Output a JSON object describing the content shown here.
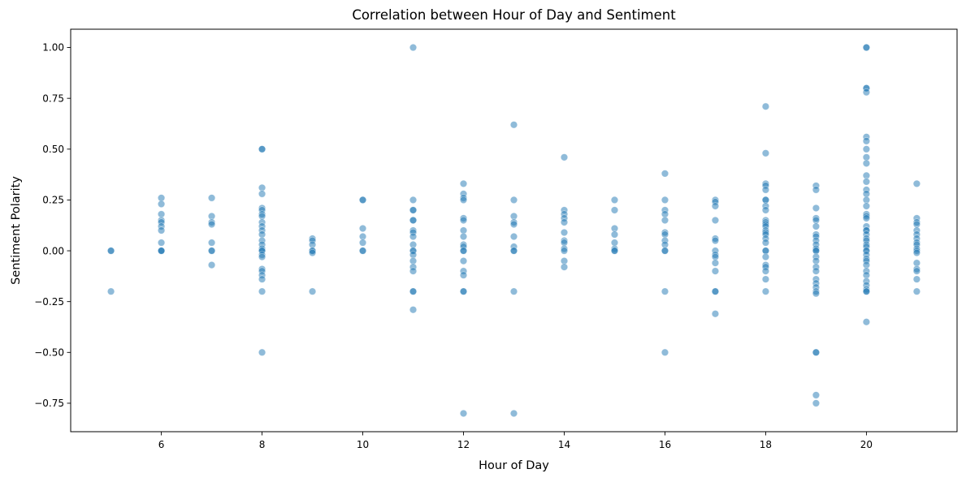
{
  "chart_data": {
    "type": "scatter",
    "title": "Correlation between Hour of Day and Sentiment",
    "xlabel": "Hour of Day",
    "ylabel": "Sentiment Polarity",
    "xlim": [
      4.2,
      21.8
    ],
    "ylim": [
      -0.89,
      1.09
    ],
    "xticks": [
      6,
      8,
      10,
      12,
      14,
      16,
      18,
      20
    ],
    "yticks": [
      -0.75,
      -0.5,
      -0.25,
      0.0,
      0.25,
      0.5,
      0.75,
      1.0
    ],
    "grid": false,
    "legend": "none",
    "marker_color": "#1f77b4",
    "marker_alpha": 0.5,
    "points": [
      [
        5,
        0
      ],
      [
        5,
        0
      ],
      [
        5,
        -0.2
      ],
      [
        6,
        0.26
      ],
      [
        6,
        0.23
      ],
      [
        6,
        0.18
      ],
      [
        6,
        0.15
      ],
      [
        6,
        0.14
      ],
      [
        6,
        0.12
      ],
      [
        6,
        0.1
      ],
      [
        6,
        0.04
      ],
      [
        6,
        0
      ],
      [
        6,
        0
      ],
      [
        6,
        0
      ],
      [
        7,
        0.26
      ],
      [
        7,
        0.17
      ],
      [
        7,
        0.14
      ],
      [
        7,
        0.13
      ],
      [
        7,
        0.04
      ],
      [
        7,
        0
      ],
      [
        7,
        0
      ],
      [
        7,
        -0.07
      ],
      [
        8,
        0.5
      ],
      [
        8,
        0.5
      ],
      [
        8,
        0.31
      ],
      [
        8,
        0.28
      ],
      [
        8,
        0.21
      ],
      [
        8,
        0.2
      ],
      [
        8,
        0.18
      ],
      [
        8,
        0.17
      ],
      [
        8,
        0.14
      ],
      [
        8,
        0.12
      ],
      [
        8,
        0.1
      ],
      [
        8,
        0.08
      ],
      [
        8,
        0.05
      ],
      [
        8,
        0.03
      ],
      [
        8,
        0.01
      ],
      [
        8,
        0
      ],
      [
        8,
        0
      ],
      [
        8,
        -0.02
      ],
      [
        8,
        -0.03
      ],
      [
        8,
        -0.09
      ],
      [
        8,
        -0.1
      ],
      [
        8,
        -0.12
      ],
      [
        8,
        -0.14
      ],
      [
        8,
        -0.2
      ],
      [
        8,
        -0.5
      ],
      [
        9,
        0.06
      ],
      [
        9,
        0.05
      ],
      [
        9,
        0.03
      ],
      [
        9,
        0
      ],
      [
        9,
        0
      ],
      [
        9,
        -0.01
      ],
      [
        9,
        -0.2
      ],
      [
        10,
        0.25
      ],
      [
        10,
        0.25
      ],
      [
        10,
        0.11
      ],
      [
        10,
        0.07
      ],
      [
        10,
        0.04
      ],
      [
        10,
        0
      ],
      [
        10,
        0
      ],
      [
        11,
        1.0
      ],
      [
        11,
        0.25
      ],
      [
        11,
        0.2
      ],
      [
        11,
        0.2
      ],
      [
        11,
        0.15
      ],
      [
        11,
        0.15
      ],
      [
        11,
        0.1
      ],
      [
        11,
        0.09
      ],
      [
        11,
        0.07
      ],
      [
        11,
        0.03
      ],
      [
        11,
        0
      ],
      [
        11,
        0
      ],
      [
        11,
        -0.02
      ],
      [
        11,
        -0.05
      ],
      [
        11,
        -0.08
      ],
      [
        11,
        -0.1
      ],
      [
        11,
        -0.2
      ],
      [
        11,
        -0.2
      ],
      [
        11,
        -0.29
      ],
      [
        12,
        0.33
      ],
      [
        12,
        0.28
      ],
      [
        12,
        0.26
      ],
      [
        12,
        0.25
      ],
      [
        12,
        0.16
      ],
      [
        12,
        0.15
      ],
      [
        12,
        0.1
      ],
      [
        12,
        0.07
      ],
      [
        12,
        0.03
      ],
      [
        12,
        0.02
      ],
      [
        12,
        0
      ],
      [
        12,
        0
      ],
      [
        12,
        -0.05
      ],
      [
        12,
        -0.1
      ],
      [
        12,
        -0.12
      ],
      [
        12,
        -0.2
      ],
      [
        12,
        -0.2
      ],
      [
        12,
        -0.8
      ],
      [
        13,
        0.62
      ],
      [
        13,
        0.25
      ],
      [
        13,
        0.17
      ],
      [
        13,
        0.14
      ],
      [
        13,
        0.13
      ],
      [
        13,
        0.07
      ],
      [
        13,
        0.02
      ],
      [
        13,
        0
      ],
      [
        13,
        0
      ],
      [
        13,
        -0.2
      ],
      [
        13,
        -0.8
      ],
      [
        14,
        0.46
      ],
      [
        14,
        0.2
      ],
      [
        14,
        0.18
      ],
      [
        14,
        0.16
      ],
      [
        14,
        0.14
      ],
      [
        14,
        0.09
      ],
      [
        14,
        0.05
      ],
      [
        14,
        0.04
      ],
      [
        14,
        0.01
      ],
      [
        14,
        0
      ],
      [
        14,
        -0.05
      ],
      [
        14,
        -0.08
      ],
      [
        15,
        0.25
      ],
      [
        15,
        0.2
      ],
      [
        15,
        0.11
      ],
      [
        15,
        0.08
      ],
      [
        15,
        0.04
      ],
      [
        15,
        0.01
      ],
      [
        15,
        0
      ],
      [
        15,
        0
      ],
      [
        16,
        0.38
      ],
      [
        16,
        0.25
      ],
      [
        16,
        0.2
      ],
      [
        16,
        0.18
      ],
      [
        16,
        0.15
      ],
      [
        16,
        0.09
      ],
      [
        16,
        0.08
      ],
      [
        16,
        0.05
      ],
      [
        16,
        0.03
      ],
      [
        16,
        0
      ],
      [
        16,
        0
      ],
      [
        16,
        -0.2
      ],
      [
        16,
        -0.5
      ],
      [
        17,
        0.25
      ],
      [
        17,
        0.24
      ],
      [
        17,
        0.22
      ],
      [
        17,
        0.15
      ],
      [
        17,
        0.06
      ],
      [
        17,
        0.05
      ],
      [
        17,
        0
      ],
      [
        17,
        -0.02
      ],
      [
        17,
        -0.03
      ],
      [
        17,
        -0.06
      ],
      [
        17,
        -0.1
      ],
      [
        17,
        -0.2
      ],
      [
        17,
        -0.2
      ],
      [
        17,
        -0.31
      ],
      [
        18,
        0.71
      ],
      [
        18,
        0.48
      ],
      [
        18,
        0.33
      ],
      [
        18,
        0.32
      ],
      [
        18,
        0.3
      ],
      [
        18,
        0.25
      ],
      [
        18,
        0.25
      ],
      [
        18,
        0.22
      ],
      [
        18,
        0.2
      ],
      [
        18,
        0.15
      ],
      [
        18,
        0.14
      ],
      [
        18,
        0.13
      ],
      [
        18,
        0.12
      ],
      [
        18,
        0.1
      ],
      [
        18,
        0.09
      ],
      [
        18,
        0.08
      ],
      [
        18,
        0.06
      ],
      [
        18,
        0.04
      ],
      [
        18,
        0
      ],
      [
        18,
        0
      ],
      [
        18,
        -0.03
      ],
      [
        18,
        -0.07
      ],
      [
        18,
        -0.08
      ],
      [
        18,
        -0.1
      ],
      [
        18,
        -0.14
      ],
      [
        18,
        -0.2
      ],
      [
        19,
        0.32
      ],
      [
        19,
        0.3
      ],
      [
        19,
        0.21
      ],
      [
        19,
        0.16
      ],
      [
        19,
        0.15
      ],
      [
        19,
        0.12
      ],
      [
        19,
        0.08
      ],
      [
        19,
        0.07
      ],
      [
        19,
        0.05
      ],
      [
        19,
        0.03
      ],
      [
        19,
        0.01
      ],
      [
        19,
        0
      ],
      [
        19,
        0
      ],
      [
        19,
        -0.03
      ],
      [
        19,
        -0.05
      ],
      [
        19,
        -0.08
      ],
      [
        19,
        -0.1
      ],
      [
        19,
        -0.14
      ],
      [
        19,
        -0.16
      ],
      [
        19,
        -0.18
      ],
      [
        19,
        -0.2
      ],
      [
        19,
        -0.21
      ],
      [
        19,
        -0.5
      ],
      [
        19,
        -0.5
      ],
      [
        19,
        -0.71
      ],
      [
        19,
        -0.75
      ],
      [
        20,
        1.0
      ],
      [
        20,
        1.0
      ],
      [
        20,
        0.8
      ],
      [
        20,
        0.8
      ],
      [
        20,
        0.78
      ],
      [
        20,
        0.56
      ],
      [
        20,
        0.54
      ],
      [
        20,
        0.5
      ],
      [
        20,
        0.46
      ],
      [
        20,
        0.43
      ],
      [
        20,
        0.37
      ],
      [
        20,
        0.34
      ],
      [
        20,
        0.3
      ],
      [
        20,
        0.28
      ],
      [
        20,
        0.25
      ],
      [
        20,
        0.22
      ],
      [
        20,
        0.18
      ],
      [
        20,
        0.17
      ],
      [
        20,
        0.16
      ],
      [
        20,
        0.12
      ],
      [
        20,
        0.1
      ],
      [
        20,
        0.1
      ],
      [
        20,
        0.08
      ],
      [
        20,
        0.06
      ],
      [
        20,
        0.05
      ],
      [
        20,
        0.03
      ],
      [
        20,
        0.02
      ],
      [
        20,
        0
      ],
      [
        20,
        0
      ],
      [
        20,
        -0.02
      ],
      [
        20,
        -0.04
      ],
      [
        20,
        -0.05
      ],
      [
        20,
        -0.07
      ],
      [
        20,
        -0.1
      ],
      [
        20,
        -0.12
      ],
      [
        20,
        -0.15
      ],
      [
        20,
        -0.17
      ],
      [
        20,
        -0.19
      ],
      [
        20,
        -0.2
      ],
      [
        20,
        -0.2
      ],
      [
        20,
        -0.35
      ],
      [
        21,
        0.33
      ],
      [
        21,
        0.16
      ],
      [
        21,
        0.14
      ],
      [
        21,
        0.13
      ],
      [
        21,
        0.1
      ],
      [
        21,
        0.08
      ],
      [
        21,
        0.06
      ],
      [
        21,
        0.04
      ],
      [
        21,
        0.03
      ],
      [
        21,
        0.01
      ],
      [
        21,
        0
      ],
      [
        21,
        -0.01
      ],
      [
        21,
        -0.06
      ],
      [
        21,
        -0.09
      ],
      [
        21,
        -0.1
      ],
      [
        21,
        -0.14
      ],
      [
        21,
        -0.2
      ]
    ]
  }
}
